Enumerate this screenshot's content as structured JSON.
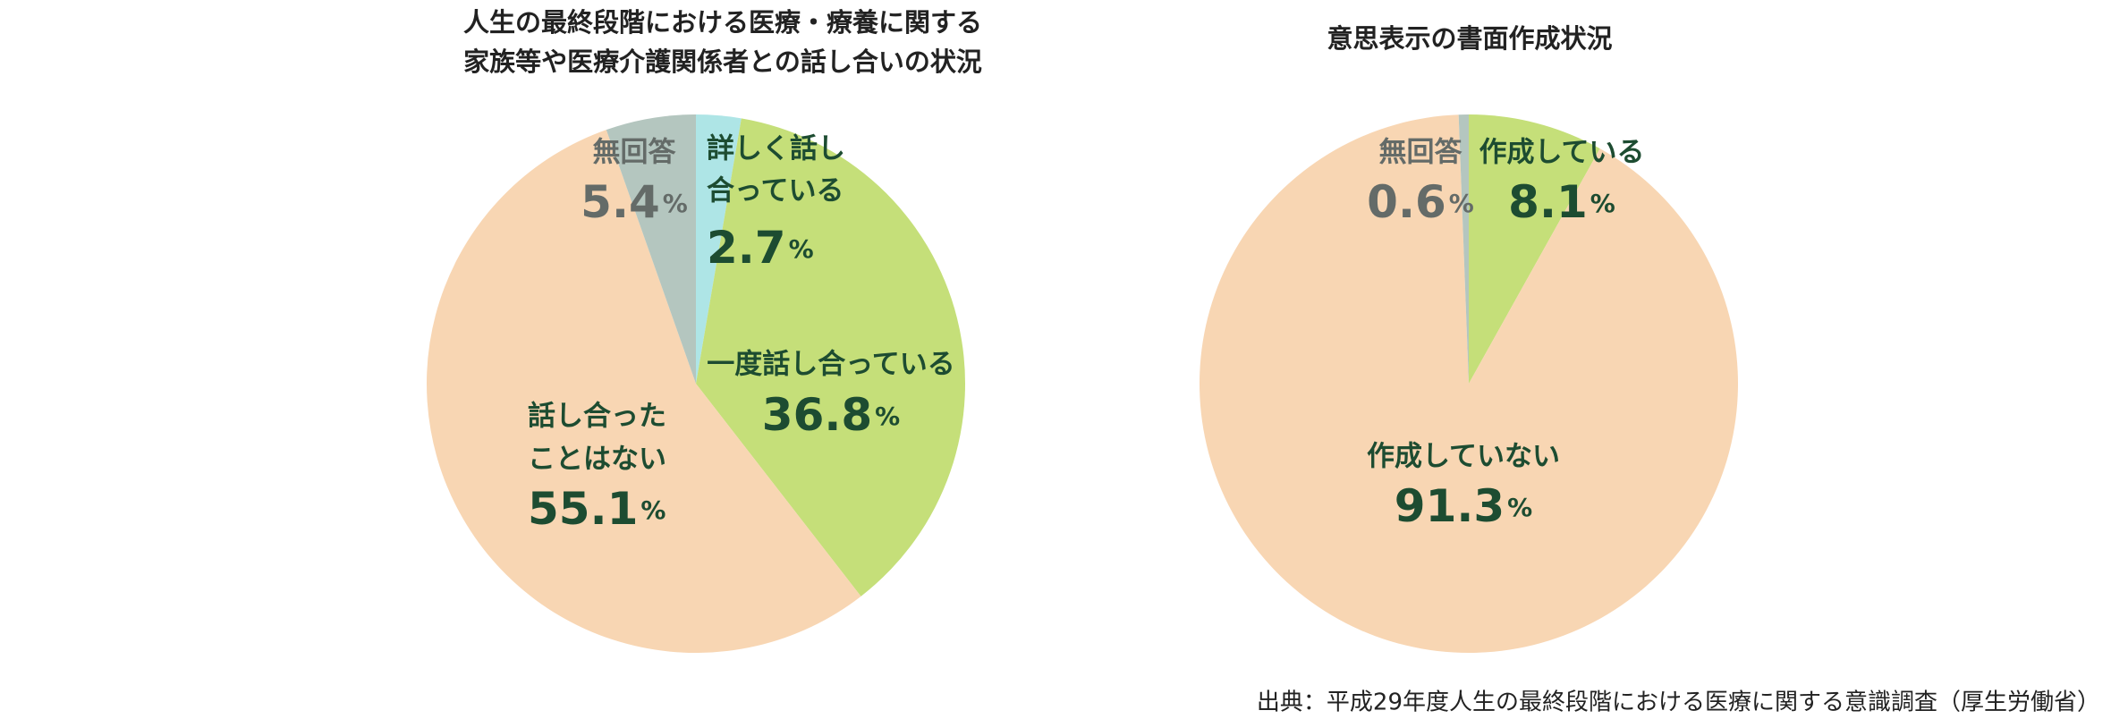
{
  "chart_data": [
    {
      "type": "pie",
      "title": [
        "人生の最終段階における医療・療養に関する",
        "家族等や医療介護関係者との話し合いの状況"
      ],
      "categories": [
        [
          "詳しく話し",
          "合っている"
        ],
        [
          "一度話し合っている"
        ],
        [
          "話し合った",
          "ことはない"
        ],
        [
          "無回答"
        ]
      ],
      "values": [
        2.7,
        36.8,
        55.1,
        5.4
      ],
      "unit": "%",
      "colors": [
        "#aee5e6",
        "#c5df79",
        "#f8d6b3",
        "#b4c6bf"
      ]
    },
    {
      "type": "pie",
      "title": [
        "意思表示の書面作成状況"
      ],
      "categories": [
        [
          "作成している"
        ],
        [
          "作成していない"
        ],
        [
          "無回答"
        ]
      ],
      "values": [
        8.1,
        91.3,
        0.6
      ],
      "unit": "%",
      "colors": [
        "#c5df79",
        "#f8d6b3",
        "#b4c6bf"
      ]
    }
  ],
  "source": "出典：平成29年度人生の最終段階における医療に関する意識調査（厚生労働省）"
}
